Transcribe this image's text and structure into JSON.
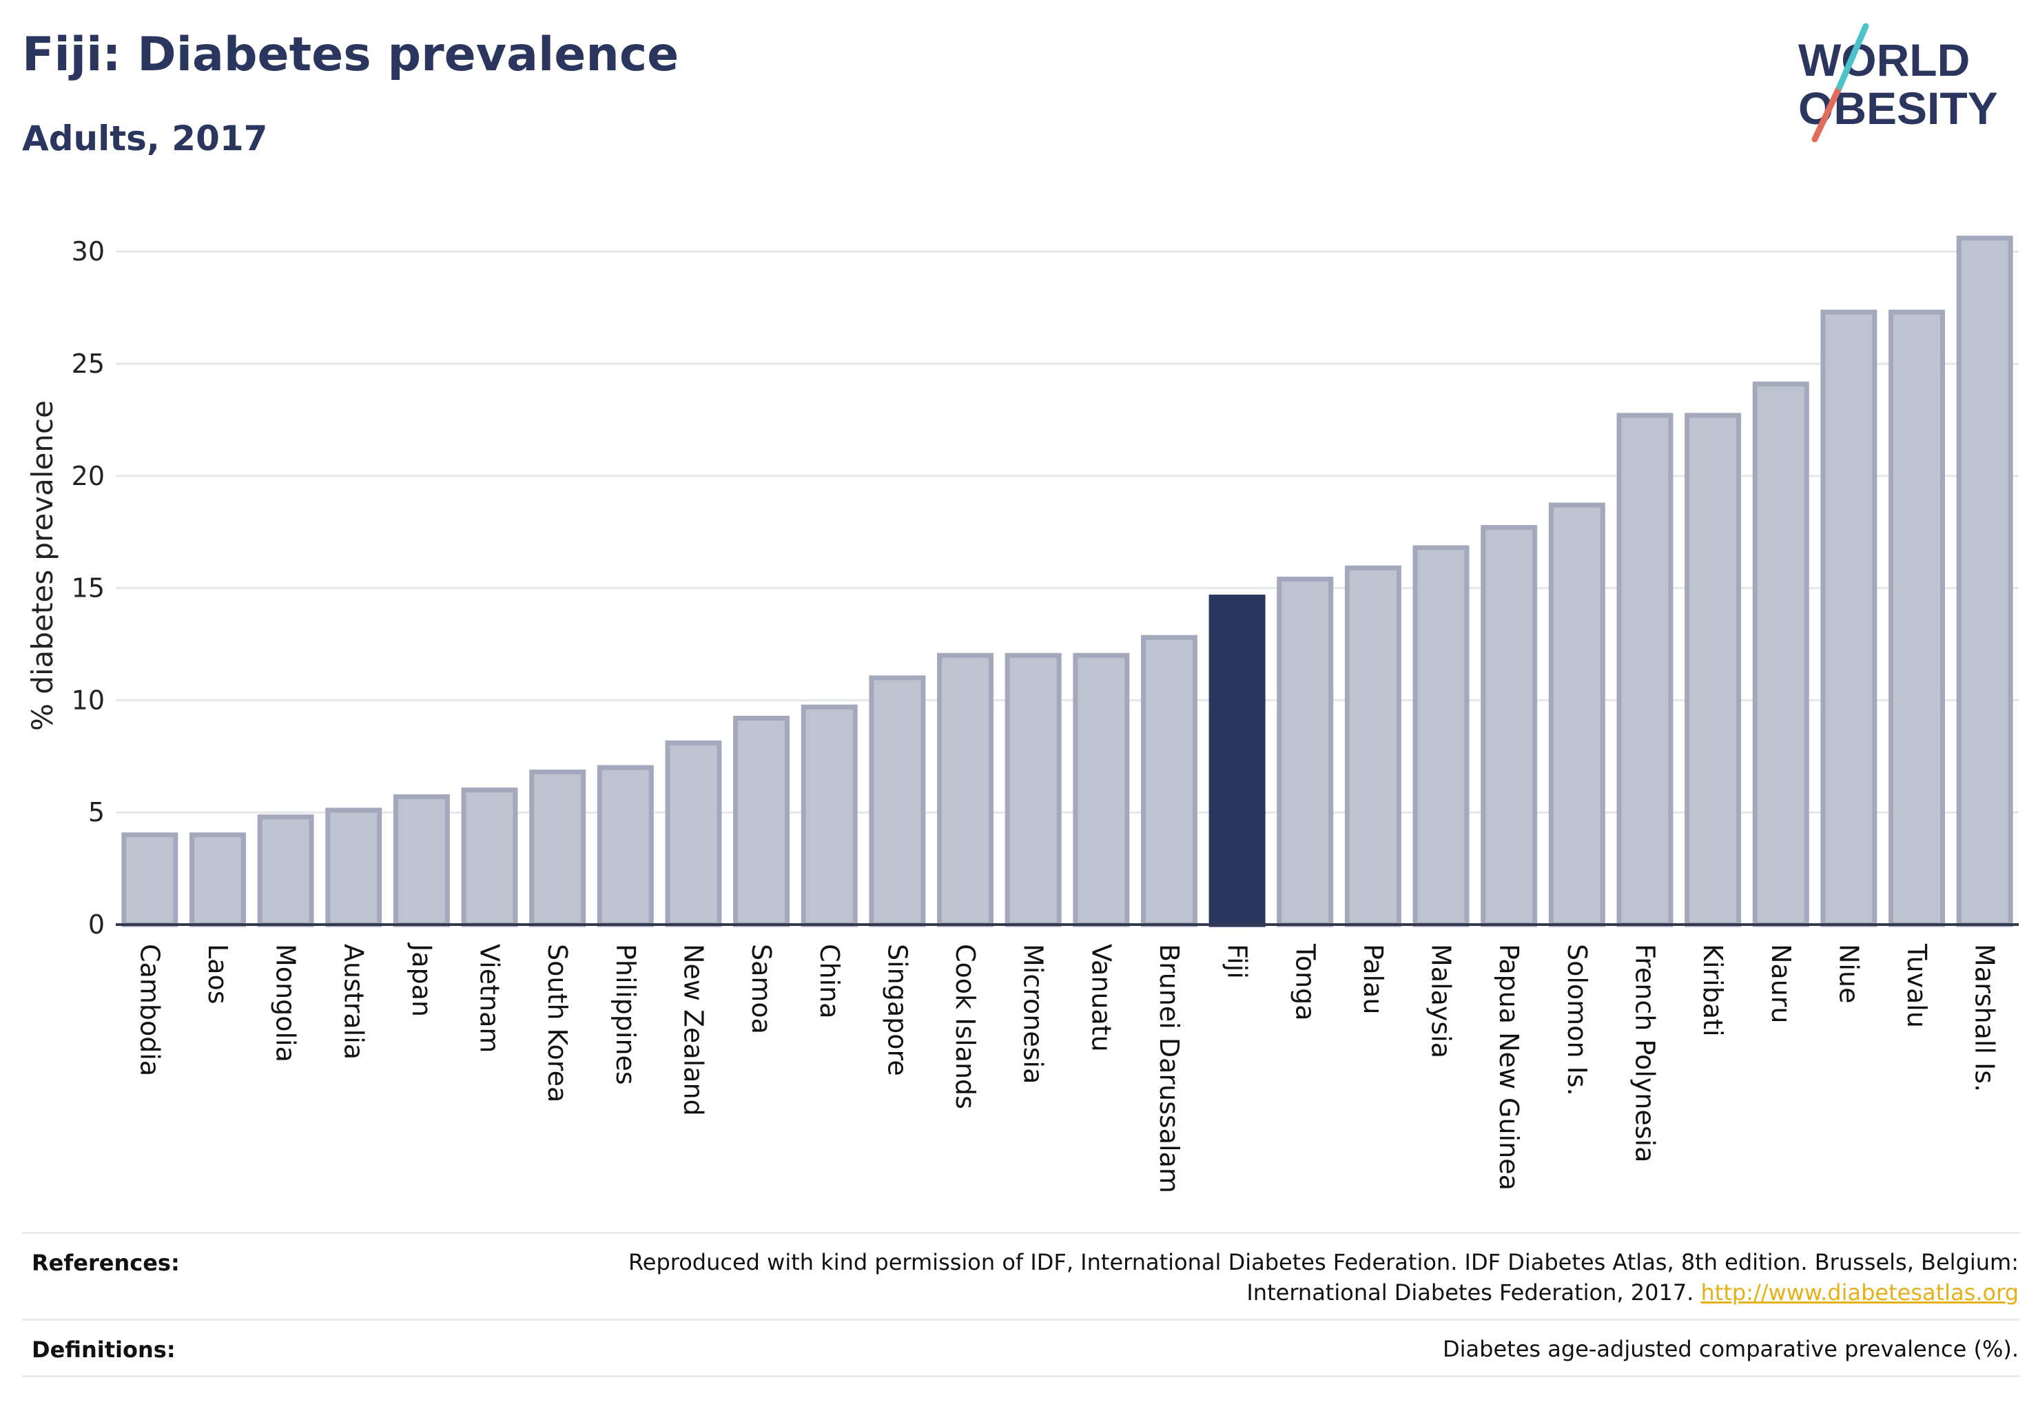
{
  "header": {
    "title": "Fiji: Diabetes prevalence",
    "subtitle": "Adults, 2017"
  },
  "logo": {
    "line1": "WORLD",
    "line2": "OBESITY"
  },
  "colors": {
    "highlight": "#2b365f",
    "bar_fill": "#bfc2cf",
    "bar_stroke": "#a3a8bd",
    "grid": "#e5e6ea",
    "accent_red": "#e06c5c",
    "accent_teal": "#4cc3c8"
  },
  "chart_data": {
    "type": "bar",
    "title": "Fiji: Diabetes prevalence",
    "subtitle": "Adults, 2017",
    "xlabel": "",
    "ylabel": "% diabetes prevalence",
    "ylim": [
      0,
      32
    ],
    "yticks": [
      0,
      5,
      10,
      15,
      20,
      25,
      30
    ],
    "grid": true,
    "highlight": "Fiji",
    "categories": [
      "Cambodia",
      "Laos",
      "Mongolia",
      "Australia",
      "Japan",
      "Vietnam",
      "South Korea",
      "Philippines",
      "New Zealand",
      "Samoa",
      "China",
      "Singapore",
      "Cook Islands",
      "Micronesia",
      "Vanuatu",
      "Brunei Darussalam",
      "Fiji",
      "Tonga",
      "Palau",
      "Malaysia",
      "Papua New Guinea",
      "Solomon Is.",
      "French Polynesia",
      "Kiribati",
      "Nauru",
      "Niue",
      "Tuvalu",
      "Marshall Is."
    ],
    "values": [
      4.0,
      4.0,
      4.8,
      5.1,
      5.7,
      6.0,
      6.8,
      7.0,
      8.1,
      9.2,
      9.7,
      11.0,
      12.0,
      12.0,
      12.0,
      12.8,
      14.6,
      15.4,
      15.9,
      16.8,
      17.7,
      18.7,
      22.7,
      22.7,
      24.1,
      27.3,
      27.3,
      30.6
    ]
  },
  "footer": {
    "references_label": "References:",
    "references_line1": "Reproduced with kind permission of IDF, International Diabetes Federation. IDF Diabetes Atlas, 8th edition. Brussels, Belgium:",
    "references_line2": "International Diabetes Federation, 2017.",
    "references_link": "http://www.diabetesatlas.org",
    "definitions_label": "Definitions:",
    "definitions_text": "Diabetes age-adjusted comparative prevalence (%)."
  }
}
